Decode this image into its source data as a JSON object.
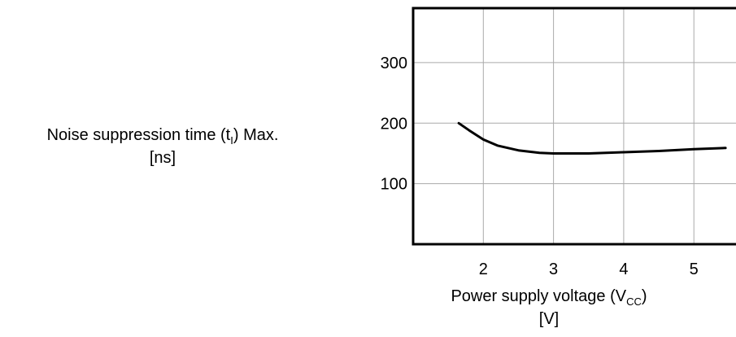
{
  "chart_data": {
    "type": "line",
    "ylabel_main": "Noise suppression time (t",
    "ylabel_sub": "I",
    "ylabel_tail": ") Max.",
    "ylabel_unit": "[ns]",
    "xlabel_main": "Power supply voltage (V",
    "xlabel_sub": "CC",
    "xlabel_tail": ")",
    "xlabel_unit": "[V]",
    "xlim": [
      1.0,
      5.6
    ],
    "ylim": [
      0,
      390
    ],
    "xticks": [
      2,
      3,
      4,
      5
    ],
    "yticks": [
      100,
      200,
      300
    ],
    "grid": true,
    "x": [
      1.65,
      1.8,
      2.0,
      2.2,
      2.5,
      2.8,
      3.0,
      3.5,
      4.0,
      4.5,
      5.0,
      5.45
    ],
    "y": [
      200,
      188,
      173,
      163,
      155,
      151,
      150,
      150,
      152,
      154,
      157,
      159
    ]
  }
}
